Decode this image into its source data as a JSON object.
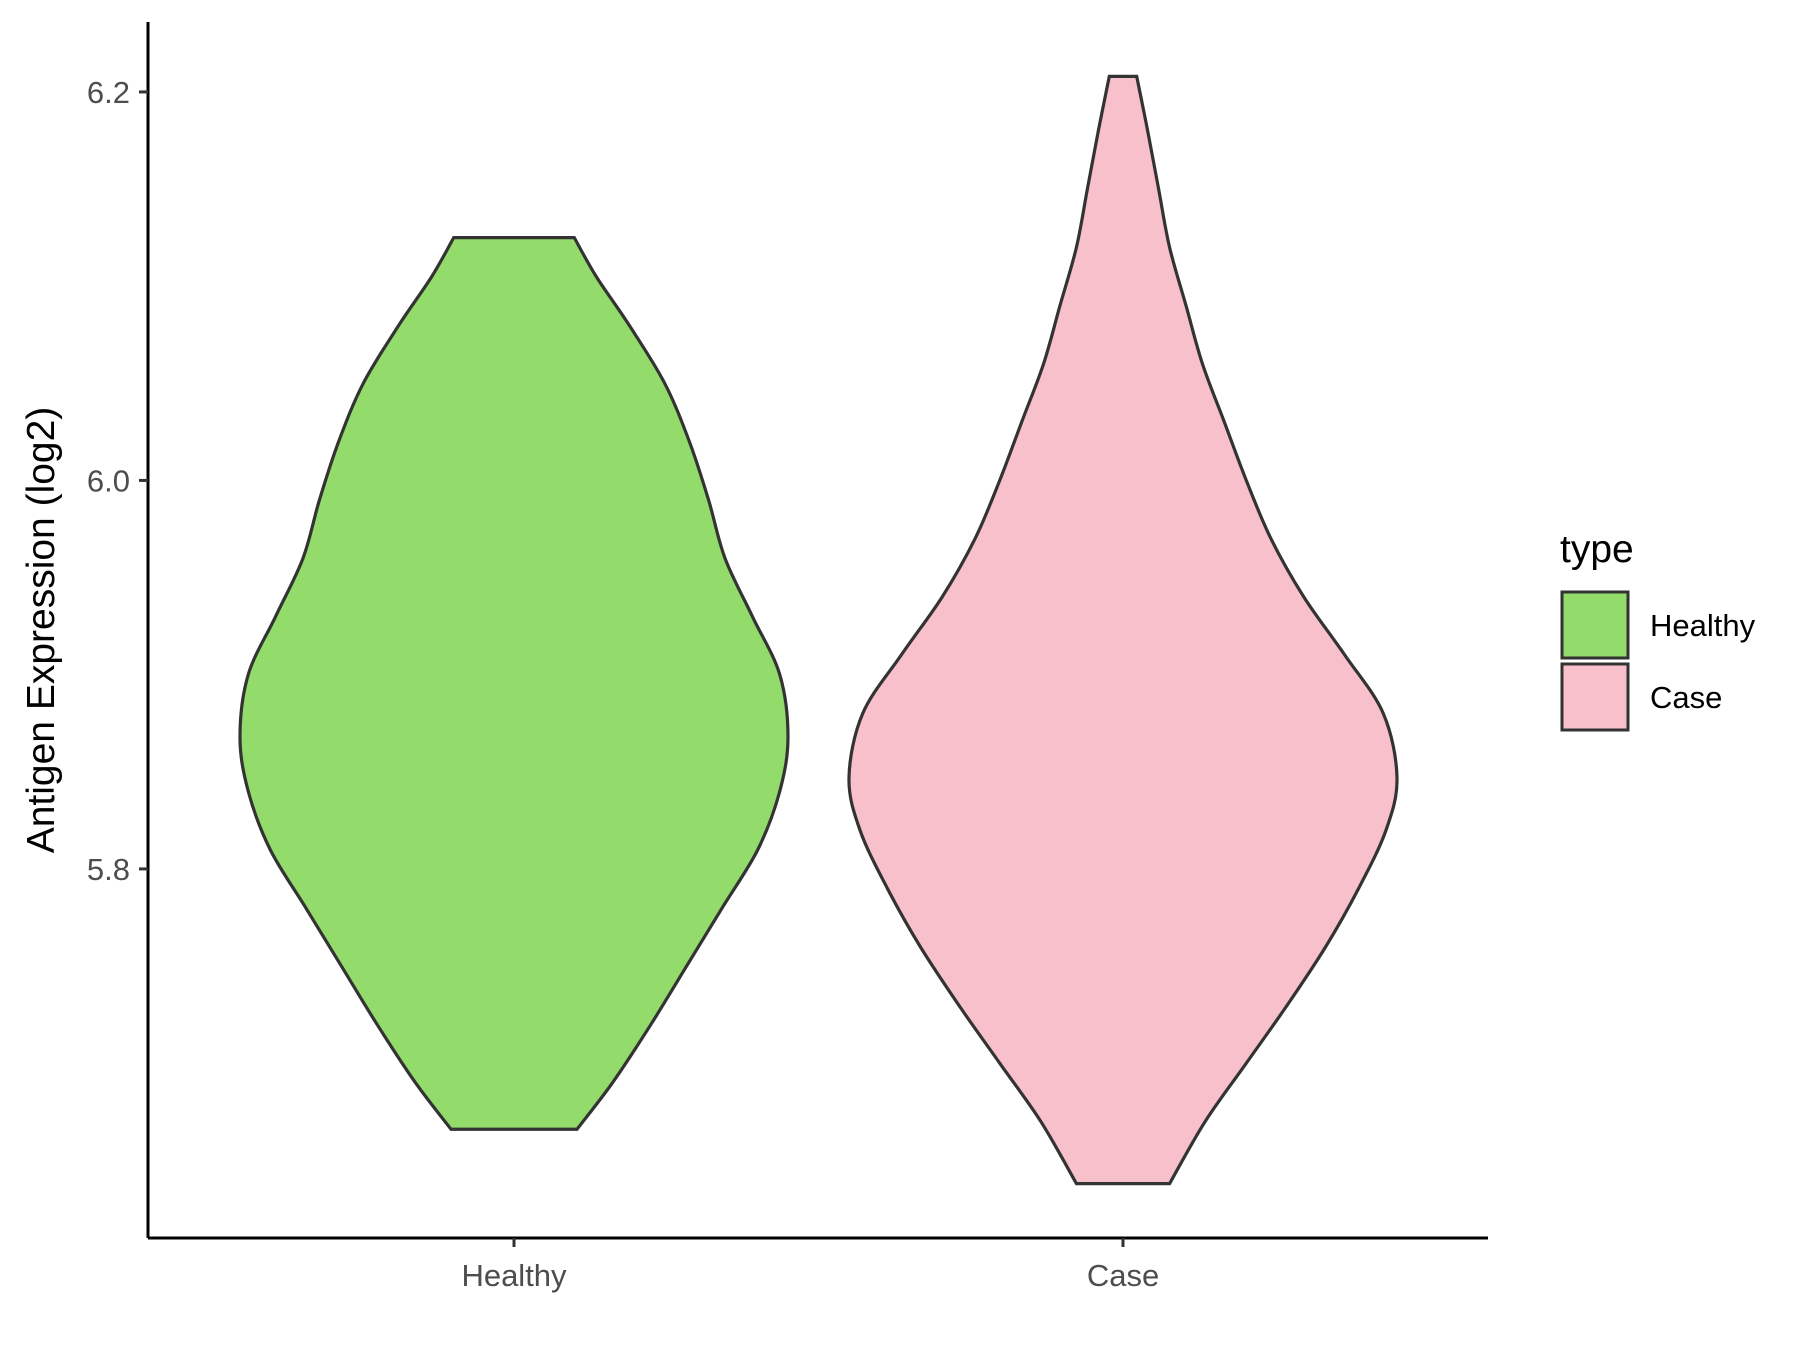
{
  "chart_data": {
    "type": "violin",
    "title": "",
    "xlabel": "",
    "ylabel": "Antigen Expression (log2)",
    "ylim": [
      5.61,
      6.236
    ],
    "yticks": [
      5.8,
      6.0,
      6.2
    ],
    "categories": [
      "Healthy",
      "Case"
    ],
    "legend": {
      "title": "type",
      "position": "right",
      "entries": [
        "Healthy",
        "Case"
      ]
    },
    "grid": false,
    "series": [
      {
        "category": "Healthy",
        "color": "#93DC6B",
        "min": 5.666,
        "max": 6.125,
        "density": [
          [
            5.666,
            0.23
          ],
          [
            5.69,
            0.36
          ],
          [
            5.72,
            0.5
          ],
          [
            5.75,
            0.63
          ],
          [
            5.78,
            0.76
          ],
          [
            5.81,
            0.89
          ],
          [
            5.84,
            0.97
          ],
          [
            5.868,
            1.0
          ],
          [
            5.9,
            0.97
          ],
          [
            5.93,
            0.87
          ],
          [
            5.96,
            0.77
          ],
          [
            5.99,
            0.71
          ],
          [
            6.02,
            0.64
          ],
          [
            6.05,
            0.55
          ],
          [
            6.08,
            0.42
          ],
          [
            6.105,
            0.3
          ],
          [
            6.125,
            0.22
          ]
        ]
      },
      {
        "category": "Case",
        "color": "#F8C0CB",
        "min": 5.638,
        "max": 6.208,
        "density": [
          [
            5.638,
            0.17
          ],
          [
            5.67,
            0.3
          ],
          [
            5.7,
            0.45
          ],
          [
            5.73,
            0.6
          ],
          [
            5.76,
            0.74
          ],
          [
            5.79,
            0.86
          ],
          [
            5.82,
            0.96
          ],
          [
            5.847,
            1.0
          ],
          [
            5.88,
            0.95
          ],
          [
            5.91,
            0.81
          ],
          [
            5.94,
            0.66
          ],
          [
            5.97,
            0.54
          ],
          [
            6.0,
            0.45
          ],
          [
            6.03,
            0.37
          ],
          [
            6.06,
            0.29
          ],
          [
            6.09,
            0.23
          ],
          [
            6.12,
            0.17
          ],
          [
            6.15,
            0.13
          ],
          [
            6.18,
            0.09
          ],
          [
            6.208,
            0.05
          ]
        ]
      }
    ]
  }
}
